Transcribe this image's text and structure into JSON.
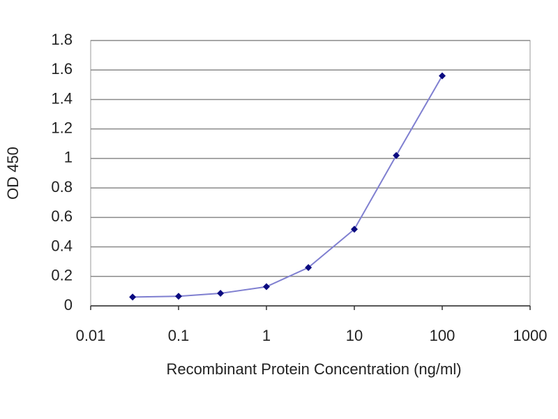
{
  "chart_data": {
    "type": "line",
    "x_label": "Recombinant Protein Concentration (ng/ml)",
    "y_label": "OD 450",
    "x": [
      0.03,
      0.1,
      0.3,
      1,
      3,
      10,
      30,
      100
    ],
    "series": [
      {
        "name": "OD 450",
        "color": "#7f7fd0",
        "marker_color": "#0a0a80",
        "values": [
          0.06,
          0.065,
          0.085,
          0.13,
          0.26,
          0.52,
          1.02,
          1.56
        ]
      }
    ],
    "xlim": [
      0.01,
      1000
    ],
    "xticks": [
      0.01,
      0.1,
      1,
      10,
      100,
      1000
    ],
    "x_log": true,
    "ylim": [
      0,
      1.8
    ],
    "yticks": [
      0,
      0.2,
      0.4,
      0.6,
      0.8,
      1,
      1.2,
      1.4,
      1.6,
      1.8
    ],
    "grid": true
  }
}
